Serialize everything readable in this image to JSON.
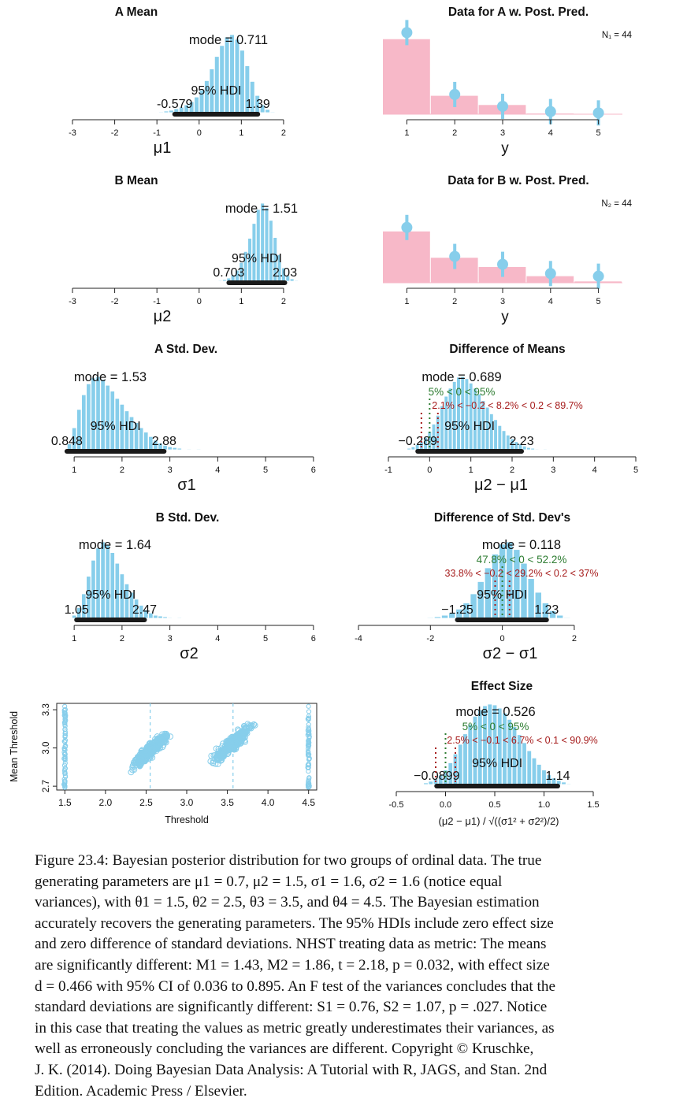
{
  "colors": {
    "bar": "#87ceeb",
    "hdi": "#1a1a1a",
    "green": "#2e7d32",
    "red": "#a61c1c",
    "data_bar": "#f7b8c8",
    "axis": "#222222"
  },
  "chart_data": [
    {
      "type": "bar",
      "title": "A Mean",
      "xlabel": "μ1",
      "xlim": [
        -3,
        2.3
      ],
      "xticks": [
        "-3",
        "-2",
        "-1",
        "0",
        "1",
        "2"
      ],
      "mode_label": "mode = 0.711",
      "hdi_label": "95% HDI",
      "hdi": [
        "-0.579",
        "1.39"
      ],
      "hist": {
        "x": [
          -0.9,
          -0.78,
          -0.66,
          -0.54,
          -0.42,
          -0.3,
          -0.18,
          -0.06,
          0.06,
          0.18,
          0.3,
          0.42,
          0.54,
          0.66,
          0.78,
          0.9,
          1.02,
          1.14,
          1.26,
          1.38,
          1.5,
          1.62,
          1.74
        ],
        "y": [
          1,
          2,
          3,
          5,
          7,
          10,
          14,
          20,
          29,
          41,
          56,
          72,
          86,
          97,
          100,
          94,
          80,
          60,
          40,
          22,
          10,
          4,
          1
        ]
      }
    },
    {
      "type": "bar",
      "title": "Data for A w. Post. Pred.",
      "xlabel": "y",
      "n_label": "N₁ = 44",
      "categories": [
        "1",
        "2",
        "3",
        "4",
        "5"
      ],
      "values": [
        0.57,
        0.14,
        0.07,
        0.005,
        0.0
      ],
      "posterior_pred": [
        0.62,
        0.15,
        0.06,
        0.02,
        0.01
      ],
      "ylim": [
        0,
        0.7
      ]
    },
    {
      "type": "bar",
      "title": "B Mean",
      "xlabel": "μ2",
      "xlim": [
        -3,
        2.3
      ],
      "xticks": [
        "-3",
        "-2",
        "-1",
        "0",
        "1",
        "2"
      ],
      "mode_label": "mode = 1.51",
      "hdi_label": "95% HDI",
      "hdi": [
        "0.703",
        "2.03"
      ],
      "hist": {
        "x": [
          0.5,
          0.6,
          0.7,
          0.8,
          0.9,
          1.0,
          1.1,
          1.2,
          1.3,
          1.4,
          1.5,
          1.6,
          1.7,
          1.8,
          1.9,
          2.0,
          2.1,
          2.2,
          2.3
        ],
        "y": [
          1,
          2,
          4,
          8,
          14,
          24,
          38,
          55,
          74,
          92,
          100,
          94,
          78,
          56,
          34,
          17,
          7,
          3,
          1
        ]
      }
    },
    {
      "type": "bar",
      "title": "Data for B w. Post. Pred.",
      "xlabel": "y",
      "n_label": "N₂ = 44",
      "categories": [
        "1",
        "2",
        "3",
        "4",
        "5"
      ],
      "values": [
        0.39,
        0.19,
        0.12,
        0.05,
        0.01
      ],
      "posterior_pred": [
        0.42,
        0.2,
        0.14,
        0.07,
        0.05
      ],
      "ylim": [
        0,
        0.7
      ]
    },
    {
      "type": "bar",
      "title": "A Std. Dev.",
      "xlabel": "σ1",
      "xlim": [
        0.8,
        6.2
      ],
      "xticks": [
        "1",
        "2",
        "3",
        "4",
        "5",
        "6"
      ],
      "mode_label": "mode = 1.53",
      "hdi_label": "95% HDI",
      "hdi": [
        "0.848",
        "2.88"
      ],
      "hist": {
        "x": [
          0.9,
          1.0,
          1.1,
          1.2,
          1.3,
          1.4,
          1.5,
          1.6,
          1.7,
          1.8,
          1.9,
          2.0,
          2.1,
          2.2,
          2.3,
          2.4,
          2.5,
          2.6,
          2.7,
          2.8,
          2.9,
          3.0,
          3.1,
          3.2,
          3.4,
          3.6
        ],
        "y": [
          8,
          30,
          55,
          75,
          90,
          98,
          100,
          96,
          88,
          80,
          70,
          62,
          53,
          45,
          37,
          30,
          24,
          18,
          13,
          9,
          6,
          4,
          3,
          2,
          1,
          1
        ]
      }
    },
    {
      "type": "bar",
      "title": "Difference of Means",
      "xlabel": "μ2 − μ1",
      "xlim": [
        -1,
        5
      ],
      "xticks": [
        "-1",
        "0",
        "1",
        "2",
        "3",
        "4",
        "5"
      ],
      "mode_label": "mode = 0.689",
      "green_label": "5% < 0 < 95%",
      "red_label": "2.1% < −0.2 < 8.2% < 0.2 < 89.7%",
      "hdi_label": "95% HDI",
      "hdi": [
        "−0.289",
        "2.23"
      ],
      "hist": {
        "x": [
          -0.5,
          -0.4,
          -0.3,
          -0.2,
          -0.1,
          0.0,
          0.1,
          0.2,
          0.3,
          0.4,
          0.5,
          0.6,
          0.7,
          0.8,
          0.9,
          1.0,
          1.1,
          1.2,
          1.3,
          1.4,
          1.5,
          1.6,
          1.7,
          1.8,
          1.9,
          2.0,
          2.1,
          2.2,
          2.3,
          2.4,
          2.5,
          2.6,
          2.8
        ],
        "y": [
          2,
          4,
          7,
          11,
          17,
          25,
          35,
          47,
          60,
          73,
          84,
          93,
          99,
          100,
          97,
          91,
          84,
          76,
          67,
          58,
          49,
          41,
          33,
          26,
          20,
          15,
          11,
          8,
          5,
          3,
          2,
          1,
          1
        ]
      }
    },
    {
      "type": "bar",
      "title": "B Std. Dev.",
      "xlabel": "σ2",
      "xlim": [
        0.8,
        6.2
      ],
      "xticks": [
        "1",
        "2",
        "3",
        "4",
        "5",
        "6"
      ],
      "mode_label": "mode = 1.64",
      "hdi_label": "95% HDI",
      "hdi": [
        "1.05",
        "2.47"
      ],
      "hist": {
        "x": [
          1.0,
          1.1,
          1.2,
          1.3,
          1.4,
          1.5,
          1.6,
          1.7,
          1.8,
          1.9,
          2.0,
          2.1,
          2.2,
          2.3,
          2.4,
          2.5,
          2.6,
          2.7,
          2.8,
          2.9,
          3.0,
          3.2
        ],
        "y": [
          4,
          14,
          32,
          55,
          76,
          92,
          100,
          96,
          86,
          72,
          58,
          45,
          34,
          25,
          17,
          11,
          7,
          4,
          3,
          2,
          1,
          1
        ]
      }
    },
    {
      "type": "bar",
      "title": "Difference of Std. Dev's",
      "xlabel": "σ2 − σ1",
      "xlim": [
        -4,
        2.9
      ],
      "xticks": [
        "-4",
        "-2",
        "0",
        "2"
      ],
      "mode_label": "mode = 0.118",
      "green_label": "47.8% < 0 < 52.2%",
      "red_label": "33.8% < −0.2 < 29.2% < 0.2 < 37%",
      "hdi_label": "95% HDI",
      "hdi": [
        "−1.25",
        "1.23"
      ],
      "hist": {
        "x": [
          -2.0,
          -1.8,
          -1.6,
          -1.4,
          -1.2,
          -1.0,
          -0.8,
          -0.6,
          -0.4,
          -0.2,
          0.0,
          0.2,
          0.4,
          0.6,
          0.8,
          1.0,
          1.2,
          1.4,
          1.6,
          1.8
        ],
        "y": [
          1,
          2,
          4,
          7,
          12,
          20,
          32,
          48,
          66,
          84,
          97,
          100,
          90,
          72,
          52,
          34,
          20,
          10,
          4,
          1
        ]
      }
    },
    {
      "type": "scatter",
      "xlabel": "Threshold",
      "ylabel": "Mean Threshold",
      "xlim": [
        1.4,
        4.6
      ],
      "ylim": [
        2.67,
        3.35
      ],
      "xticks": [
        "1.5",
        "2.0",
        "2.5",
        "3.0",
        "3.5",
        "4.0",
        "4.5"
      ],
      "yticks": [
        "2.7",
        "3.0",
        "3.3"
      ],
      "threshold_fixed": [
        1.5,
        4.5
      ],
      "threshold_means": [
        2.55,
        3.57
      ],
      "clusters": [
        {
          "center": [
            2.55,
            2.98
          ],
          "spread_x": 0.18,
          "slope": 0.55
        },
        {
          "center": [
            3.57,
            3.04
          ],
          "spread_x": 0.2,
          "slope": 0.55
        }
      ]
    },
    {
      "type": "bar",
      "title": "Effect Size",
      "xlabel": "(μ2 − μ1) / √((σ1² + σ2²)/2)",
      "xlim": [
        -0.5,
        1.5
      ],
      "xticks": [
        "-0.5",
        "0.0",
        "0.5",
        "1.0",
        "1.5"
      ],
      "mode_label": "mode = 0.526",
      "green_label": "5% < 0 < 95%",
      "red_label": "2.5% < −0.1 < 6.7% < 0.1 < 90.9%",
      "hdi_label": "95% HDI",
      "hdi": [
        "−0.0899",
        "1.14"
      ],
      "hist": {
        "x": [
          -0.2,
          -0.15,
          -0.1,
          -0.05,
          0.0,
          0.05,
          0.1,
          0.15,
          0.2,
          0.25,
          0.3,
          0.35,
          0.4,
          0.45,
          0.5,
          0.55,
          0.6,
          0.65,
          0.7,
          0.75,
          0.8,
          0.85,
          0.9,
          0.95,
          1.0,
          1.05,
          1.1,
          1.15,
          1.2,
          1.25
        ],
        "y": [
          2,
          4,
          7,
          12,
          18,
          27,
          38,
          50,
          63,
          75,
          85,
          93,
          98,
          100,
          99,
          95,
          89,
          81,
          72,
          62,
          52,
          42,
          33,
          25,
          18,
          12,
          8,
          5,
          3,
          1
        ]
      }
    }
  ],
  "caption": {
    "lines": [
      "Figure 23.4: Bayesian posterior distribution for two groups of ordinal data. The true",
      "generating parameters are μ1 = 0.7, μ2 = 1.5, σ1 = 1.6, σ2 = 1.6 (notice equal",
      "variances), with θ1 = 1.5, θ2 = 2.5, θ3 = 3.5, and θ4 = 4.5. The Bayesian estimation",
      "accurately recovers the generating parameters. The 95% HDIs include zero effect size",
      "and zero difference of standard deviations. NHST treating data as metric: The means",
      "are significantly different: M1 = 1.43, M2 = 1.86, t = 2.18, p = 0.032, with effect size",
      "d = 0.466 with 95% CI of 0.036 to 0.895. An F test of the variances concludes that the",
      "standard deviations are significantly different: S1 = 0.76, S2 = 1.07, p = .027. Notice",
      "in this case that treating the values as metric greatly underestimates their variances, as",
      "well as erroneously concluding the variances are different.  Copyright © Kruschke,",
      "J. K. (2014). Doing Bayesian Data Analysis: A Tutorial with R, JAGS, and Stan. 2nd",
      "Edition. Academic Press / Elsevier."
    ]
  }
}
